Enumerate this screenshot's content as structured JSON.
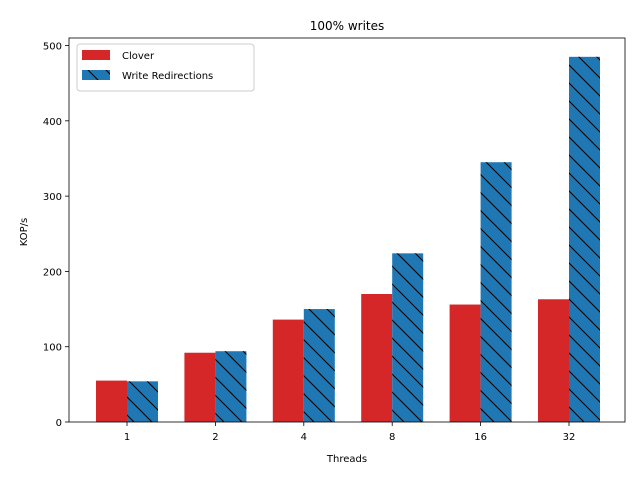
{
  "chart_data": {
    "type": "bar",
    "title": "100% writes",
    "xlabel": "Threads",
    "ylabel": "KOP/s",
    "categories": [
      "1",
      "2",
      "4",
      "8",
      "16",
      "32"
    ],
    "ylim": [
      0,
      510
    ],
    "yticks": [
      0,
      100,
      200,
      300,
      400,
      500
    ],
    "series": [
      {
        "name": "Clover",
        "values": [
          55,
          92,
          136,
          170,
          156,
          163
        ],
        "color": "#d62728",
        "hatch": "none"
      },
      {
        "name": "Write Redirections",
        "values": [
          54,
          94,
          150,
          224,
          345,
          485
        ],
        "color": "#1f77b4",
        "hatch": "diagonal"
      }
    ],
    "legend_position": "top-left",
    "grid": false
  }
}
